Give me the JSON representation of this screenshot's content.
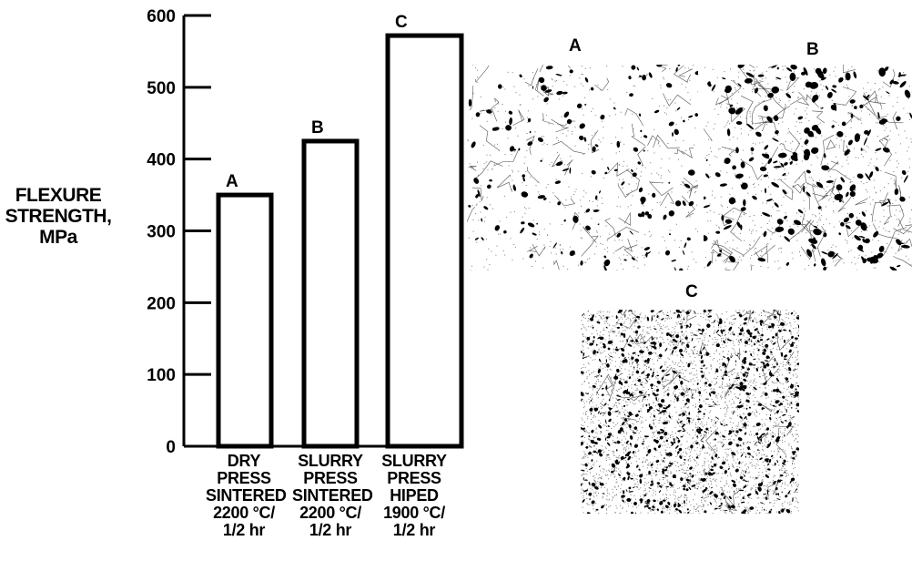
{
  "chart_data": {
    "type": "bar",
    "ylabel": "FLEXURE STRENGTH, MPa",
    "ylabel_lines": [
      "FLEXURE",
      "STRENGTH,",
      "MPa"
    ],
    "ylim": [
      0,
      600
    ],
    "yticks": [
      0,
      100,
      200,
      300,
      400,
      500,
      600
    ],
    "categories": [
      "DRY PRESS SINTERED 2200 °C/ 1/2 hr",
      "SLURRY PRESS SINTERED 2200 °C/ 1/2 hr",
      "SLURRY PRESS HIPED 1900 °C/ 1/2 hr"
    ],
    "category_lines": [
      [
        "DRY",
        "PRESS",
        "SINTERED",
        "2200 °C/",
        "1/2 hr"
      ],
      [
        "SLURRY",
        "PRESS",
        "SINTERED",
        "2200 °C/",
        "1/2 hr"
      ],
      [
        "SLURRY",
        "PRESS",
        "HIPED",
        "1900 °C/",
        "1/2 hr"
      ]
    ],
    "bar_labels": [
      "A",
      "B",
      "C"
    ],
    "values": [
      350,
      425,
      572
    ],
    "grid": false,
    "bar_fill": "#ffffff",
    "bar_stroke": "#000000"
  },
  "micrographs": [
    {
      "label": "A",
      "density": "coarse sparse pores"
    },
    {
      "label": "B",
      "density": "coarse denser pores"
    },
    {
      "label": "C",
      "density": "fine dense speckle"
    }
  ]
}
